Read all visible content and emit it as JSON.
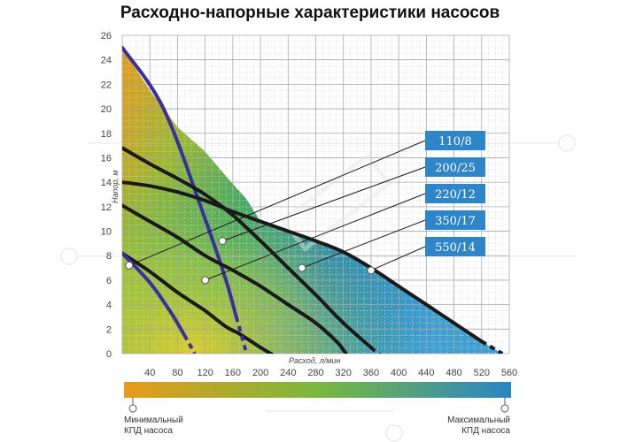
{
  "title": "Расходно-напорные характеристики насосов",
  "chart_data": {
    "type": "line",
    "title": "Расходно-напорные характеристики насосов",
    "xlabel": "Расход, л/мин",
    "ylabel": "Напор, м",
    "xlim": [
      0,
      560
    ],
    "ylim": [
      0,
      26
    ],
    "x_ticks": [
      "40",
      "80",
      "120",
      "160",
      "200",
      "240",
      "280",
      "320",
      "360",
      "400",
      "440",
      "480",
      "520",
      "560"
    ],
    "y_ticks": [
      "0",
      "2",
      "4",
      "6",
      "8",
      "10",
      "12",
      "14",
      "16",
      "18",
      "20",
      "22",
      "24",
      "26"
    ],
    "grid": true,
    "series": [
      {
        "name": "110/8",
        "color": "#1a1a1a",
        "x": [
          0,
          40,
          80,
          120,
          150,
          170,
          200,
          215,
          230
        ],
        "y": [
          8.2,
          6.7,
          5,
          3.5,
          2.2,
          1.6,
          0.5,
          0,
          -0.5
        ]
      },
      {
        "name": "200/25",
        "color": "#3a2fa0",
        "x": [
          0,
          60,
          120,
          150,
          165,
          180
        ],
        "y": [
          25,
          20,
          11,
          6,
          3,
          0
        ]
      },
      {
        "name": "220/12",
        "color": "#1a1a1a",
        "x": [
          0,
          40,
          80,
          120,
          160,
          200,
          240,
          280,
          310,
          320,
          330
        ],
        "y": [
          12.1,
          10.8,
          9.5,
          8,
          6.8,
          5.5,
          4,
          2.5,
          1,
          0.3,
          -0.5
        ]
      },
      {
        "name": "350/17",
        "color": "#1a1a1a",
        "x": [
          0,
          40,
          80,
          120,
          160,
          200,
          240,
          280,
          320,
          360,
          380
        ],
        "y": [
          16.8,
          15.5,
          14.3,
          13,
          11.3,
          9.2,
          7,
          4.8,
          2.5,
          0.5,
          -0.5
        ]
      },
      {
        "name": "550/14",
        "color": "#1a1a1a",
        "x": [
          0,
          40,
          80,
          120,
          160,
          200,
          240,
          280,
          320,
          360,
          400,
          440,
          480,
          520,
          550
        ],
        "y": [
          14,
          13.7,
          13.2,
          12.5,
          11.6,
          10.8,
          10,
          9.2,
          8.3,
          7,
          5.5,
          4,
          2.5,
          1,
          0
        ]
      },
      {
        "name": "",
        "color": "#3a2fa0",
        "x": [
          0,
          40,
          70,
          90,
          105
        ],
        "y": [
          8.2,
          5.8,
          3.4,
          1.5,
          0
        ]
      }
    ],
    "labels": [
      "110/8",
      "200/25",
      "220/12",
      "350/17",
      "550/14"
    ],
    "label_color": "#2e86c8",
    "colorbar": {
      "min_label": "Минимальный КПД насоса",
      "max_label": "Максимальный КПД насоса",
      "from": "#e79a1c",
      "mid": "#7ab83e",
      "to": "#2a86c4"
    }
  },
  "colorbar": {
    "min_line1": "Минимальный",
    "min_line2": "КПД насоса",
    "max_line1": "Максимальный",
    "max_line2": "КПД насоса"
  }
}
